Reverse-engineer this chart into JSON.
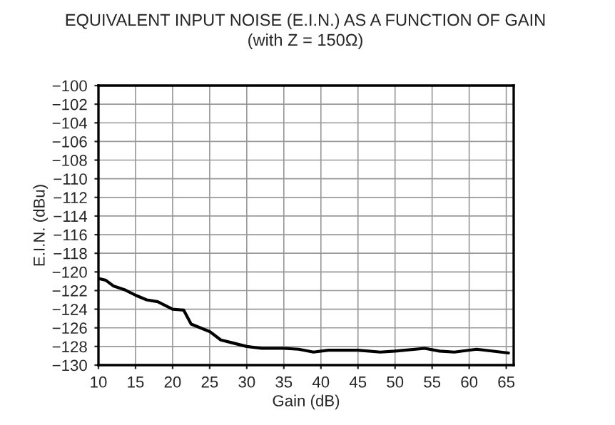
{
  "chart_data": {
    "type": "line",
    "title": "EQUIVALENT INPUT NOISE (E.I.N.) AS A FUNCTION OF GAIN",
    "subtitle": "(with Z = 150Ω)",
    "xlabel": "Gain (dB)",
    "ylabel": "E.I.N. (dBu)",
    "series": [
      {
        "color": "#000000",
        "x": [
          10,
          11,
          12,
          13.5,
          15,
          16.5,
          18,
          19,
          20,
          21.5,
          22.5,
          25,
          26.5,
          28,
          30,
          32,
          35,
          37,
          39,
          41,
          45,
          48,
          50,
          54,
          56,
          58,
          61,
          65.3
        ],
        "values": [
          -120.7,
          -120.9,
          -121.5,
          -121.9,
          -122.5,
          -123.0,
          -123.2,
          -123.6,
          -124.0,
          -124.1,
          -125.6,
          -126.4,
          -127.3,
          -127.6,
          -128.0,
          -128.2,
          -128.2,
          -128.3,
          -128.6,
          -128.4,
          -128.4,
          -128.6,
          -128.5,
          -128.2,
          -128.5,
          -128.6,
          -128.3,
          -128.7
        ]
      }
    ],
    "xlim": [
      10,
      66
    ],
    "xticks": [
      10,
      15,
      20,
      25,
      30,
      35,
      40,
      45,
      50,
      55,
      60,
      65
    ],
    "ylim": [
      -130,
      -100
    ],
    "yticks": [
      -130,
      -128,
      -126,
      -124,
      -122,
      -120,
      -118,
      -116,
      -114,
      -112,
      -110,
      -108,
      -106,
      -104,
      -102,
      -100
    ],
    "grid": true,
    "legend": false
  }
}
